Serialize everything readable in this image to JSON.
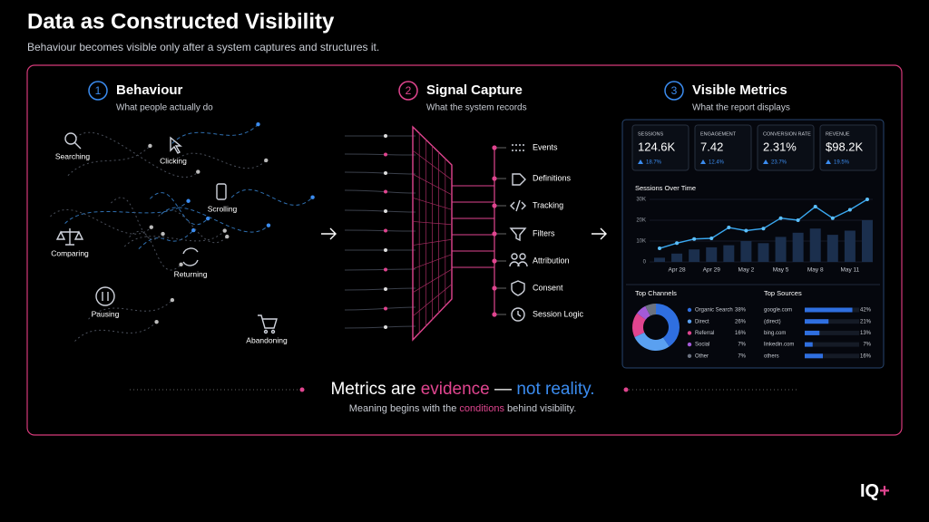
{
  "header": {
    "title": "Data as Constructed Visibility",
    "subtitle": "Behaviour becomes visible only after a system captures and structures it."
  },
  "sections": [
    {
      "number": "1",
      "title": "Behaviour",
      "subtitle": "What people actually do"
    },
    {
      "number": "2",
      "title": "Signal Capture",
      "subtitle": "What the system records"
    },
    {
      "number": "3",
      "title": "Visible Metrics",
      "subtitle": "What the report displays"
    }
  ],
  "behaviours": [
    "Searching",
    "Clicking",
    "Scrolling",
    "Comparing",
    "Returning",
    "Pausing",
    "Abandoning"
  ],
  "capture_steps": [
    "Events",
    "Definitions",
    "Tracking",
    "Filters",
    "Attribution",
    "Consent",
    "Session Logic"
  ],
  "dashboard": {
    "kpis": [
      {
        "label": "SESSIONS",
        "value": "124.6K",
        "change": "18.7%"
      },
      {
        "label": "ENGAGEMENT",
        "value": "7.42",
        "change": "12.4%"
      },
      {
        "label": "CONVERSION RATE",
        "value": "2.31%",
        "change": "23.7%"
      },
      {
        "label": "REVENUE",
        "value": "$98.2K",
        "change": "19.5%"
      }
    ],
    "sessions_chart": {
      "title": "Sessions Over Time",
      "categories": [
        null,
        "Apr 28",
        null,
        "Apr 29",
        null,
        "May 2",
        null,
        "May 5",
        null,
        "May 8",
        null,
        "May 11",
        null
      ],
      "line": [
        6500,
        9000,
        11000,
        11300,
        16500,
        15000,
        16000,
        21000,
        20000,
        26500,
        21000,
        25000,
        30000
      ],
      "bars": [
        2000,
        4000,
        6000,
        7000,
        8000,
        10000,
        9000,
        12000,
        14000,
        16000,
        13000,
        15000,
        20000
      ],
      "ylim": [
        0,
        30000
      ],
      "yticks": [
        0,
        {
          "value": 10000,
          "label": "10K"
        },
        {
          "value": 20000,
          "label": "20K"
        },
        {
          "value": 30000,
          "label": "30K"
        }
      ]
    },
    "channels": {
      "title": "Top Channels",
      "items": [
        {
          "name": "Organic Search",
          "value": 38,
          "label": "38%",
          "color": "#2f6fe0"
        },
        {
          "name": "Direct",
          "value": 26,
          "label": "26%",
          "color": "#5aa0f0"
        },
        {
          "name": "Referral",
          "value": 16,
          "label": "16%",
          "color": "#e0458f"
        },
        {
          "name": "Social",
          "value": 7,
          "label": "7%",
          "color": "#a35ad8"
        },
        {
          "name": "Other",
          "value": 7,
          "label": "7%",
          "color": "#6b7280"
        }
      ]
    },
    "sources": {
      "title": "Top Sources",
      "items": [
        {
          "name": "google.com",
          "value": 42,
          "label": "42%"
        },
        {
          "name": "(direct)",
          "value": 21,
          "label": "21%"
        },
        {
          "name": "bing.com",
          "value": 13,
          "label": "13%"
        },
        {
          "name": "linkedin.com",
          "value": 7,
          "label": "7%"
        },
        {
          "name": "others",
          "value": 16,
          "label": "16%"
        }
      ]
    }
  },
  "footer": {
    "headline": [
      "Metrics are",
      "evidence",
      "—",
      "not reality."
    ],
    "subline": [
      "Meaning begins with the",
      "conditions",
      "behind visibility."
    ]
  },
  "logo": {
    "text": "IQ",
    "mark": "+"
  }
}
